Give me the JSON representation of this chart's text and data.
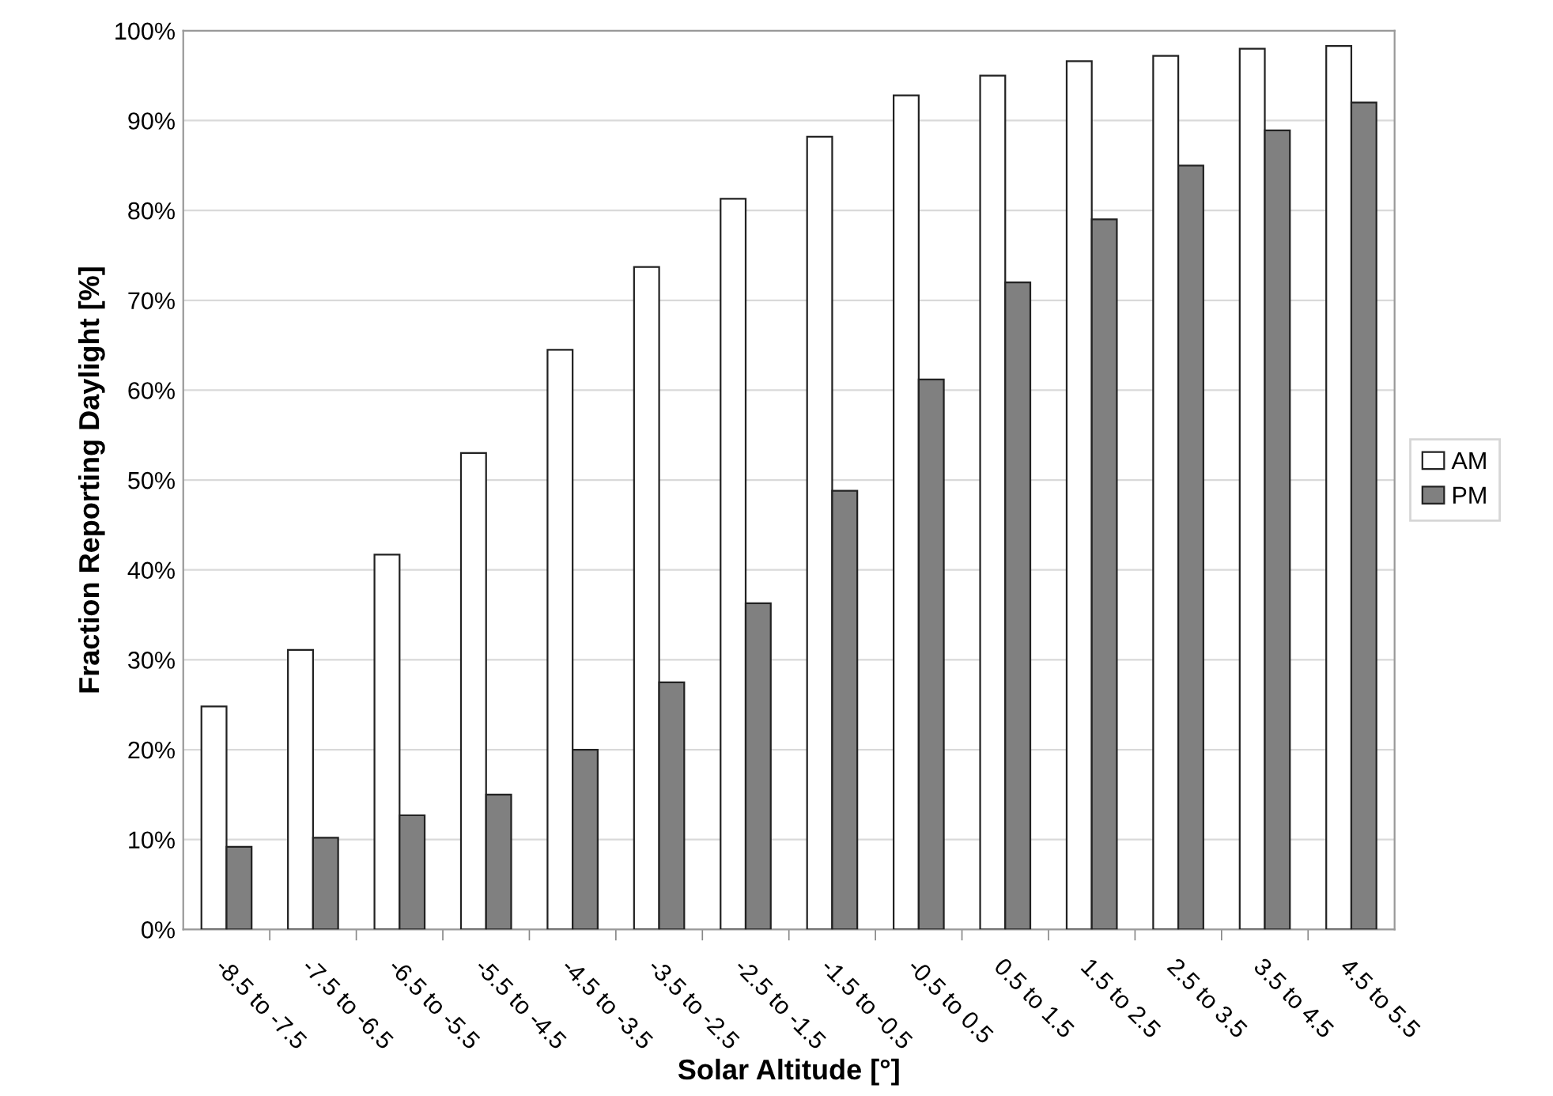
{
  "chart_data": {
    "type": "bar",
    "xlabel": "Solar Altitude [°]",
    "ylabel": "Fraction Reporting Daylight [%]",
    "categories": [
      "-8.5 to -7.5",
      "-7.5 to -6.5",
      "-6.5 to -5.5",
      "-5.5 to -4.5",
      "-4.5 to -3.5",
      "-3.5 to -2.5",
      "-2.5 to -1.5",
      "-1.5 to -0.5",
      "-0.5 to 0.5",
      "0.5 to 1.5",
      "1.5 to 2.5",
      "2.5 to 3.5",
      "3.5 to 4.5",
      "4.5 to 5.5"
    ],
    "series": [
      {
        "name": "AM",
        "color": "#ffffff",
        "values": [
          24.8,
          31.1,
          41.7,
          53,
          64.5,
          73.7,
          81.3,
          88.2,
          92.8,
          95,
          96.6,
          97.2,
          98,
          98.3
        ]
      },
      {
        "name": "PM",
        "color": "#808080",
        "values": [
          9.2,
          10.2,
          12.7,
          15,
          20,
          27.5,
          36.3,
          48.8,
          61.2,
          72,
          79,
          85,
          88.9,
          92
        ]
      }
    ],
    "ylim": [
      0,
      100
    ],
    "yticks": [
      {
        "value": 0,
        "label": "0%"
      },
      {
        "value": 10,
        "label": "10%"
      },
      {
        "value": 20,
        "label": "20%"
      },
      {
        "value": 30,
        "label": "30%"
      },
      {
        "value": 40,
        "label": "40%"
      },
      {
        "value": 50,
        "label": "50%"
      },
      {
        "value": 60,
        "label": "60%"
      },
      {
        "value": 70,
        "label": "70%"
      },
      {
        "value": 80,
        "label": "80%"
      },
      {
        "value": 90,
        "label": "90%"
      },
      {
        "value": 100,
        "label": "100%"
      }
    ],
    "grid": "y",
    "legend": "right"
  }
}
